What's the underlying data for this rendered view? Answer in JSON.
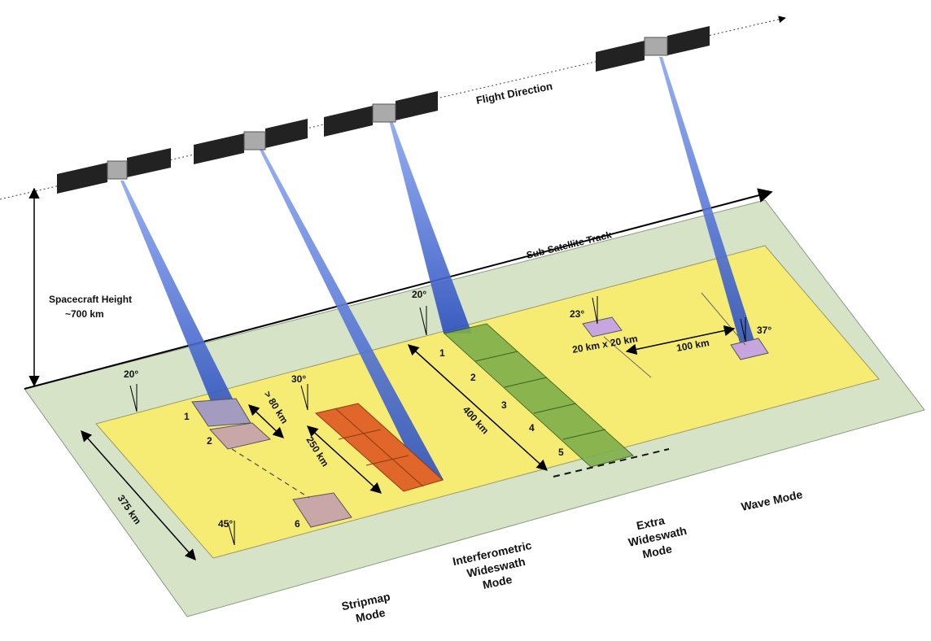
{
  "labels": {
    "flight_direction": "Flight Direction",
    "sub_satellite_track": "Sub-Satellite Track",
    "spacecraft_height_line1": "Spacecraft Height",
    "spacecraft_height_line2": "~700 km",
    "swath_375": "375 km",
    "gt80": "> 80 km",
    "km250": "250 km",
    "km400": "400 km",
    "wave_size": "20 km x 20 km",
    "km100": "100 km"
  },
  "angles": {
    "stripmap_top": "20°",
    "stripmap_bottom": "45°",
    "iw": "30°",
    "ew": "20°",
    "wave_a": "23°",
    "wave_b": "37°"
  },
  "beam_numbers": {
    "sm1": "1",
    "sm2": "2",
    "sm6": "6",
    "ew1": "1",
    "ew2": "2",
    "ew3": "3",
    "ew4": "4",
    "ew5": "5"
  },
  "modes": {
    "stripmap": [
      "Stripmap",
      "Mode"
    ],
    "iw": [
      "Interferometric",
      "Wideswath",
      "Mode"
    ],
    "ew": [
      "Extra",
      "Wideswath",
      "Mode"
    ],
    "wave": [
      "Wave Mode"
    ]
  },
  "colors": {
    "green_plane": "#d7e3c7",
    "yellow_swath": "#f6ec74",
    "beam_blue": "#3a5fc8",
    "iw_orange": "#e0662a",
    "ew_green": "#7fb04a",
    "footprint_mauve": "#c9a7a8",
    "wave_lilac": "#c7a6e0"
  }
}
